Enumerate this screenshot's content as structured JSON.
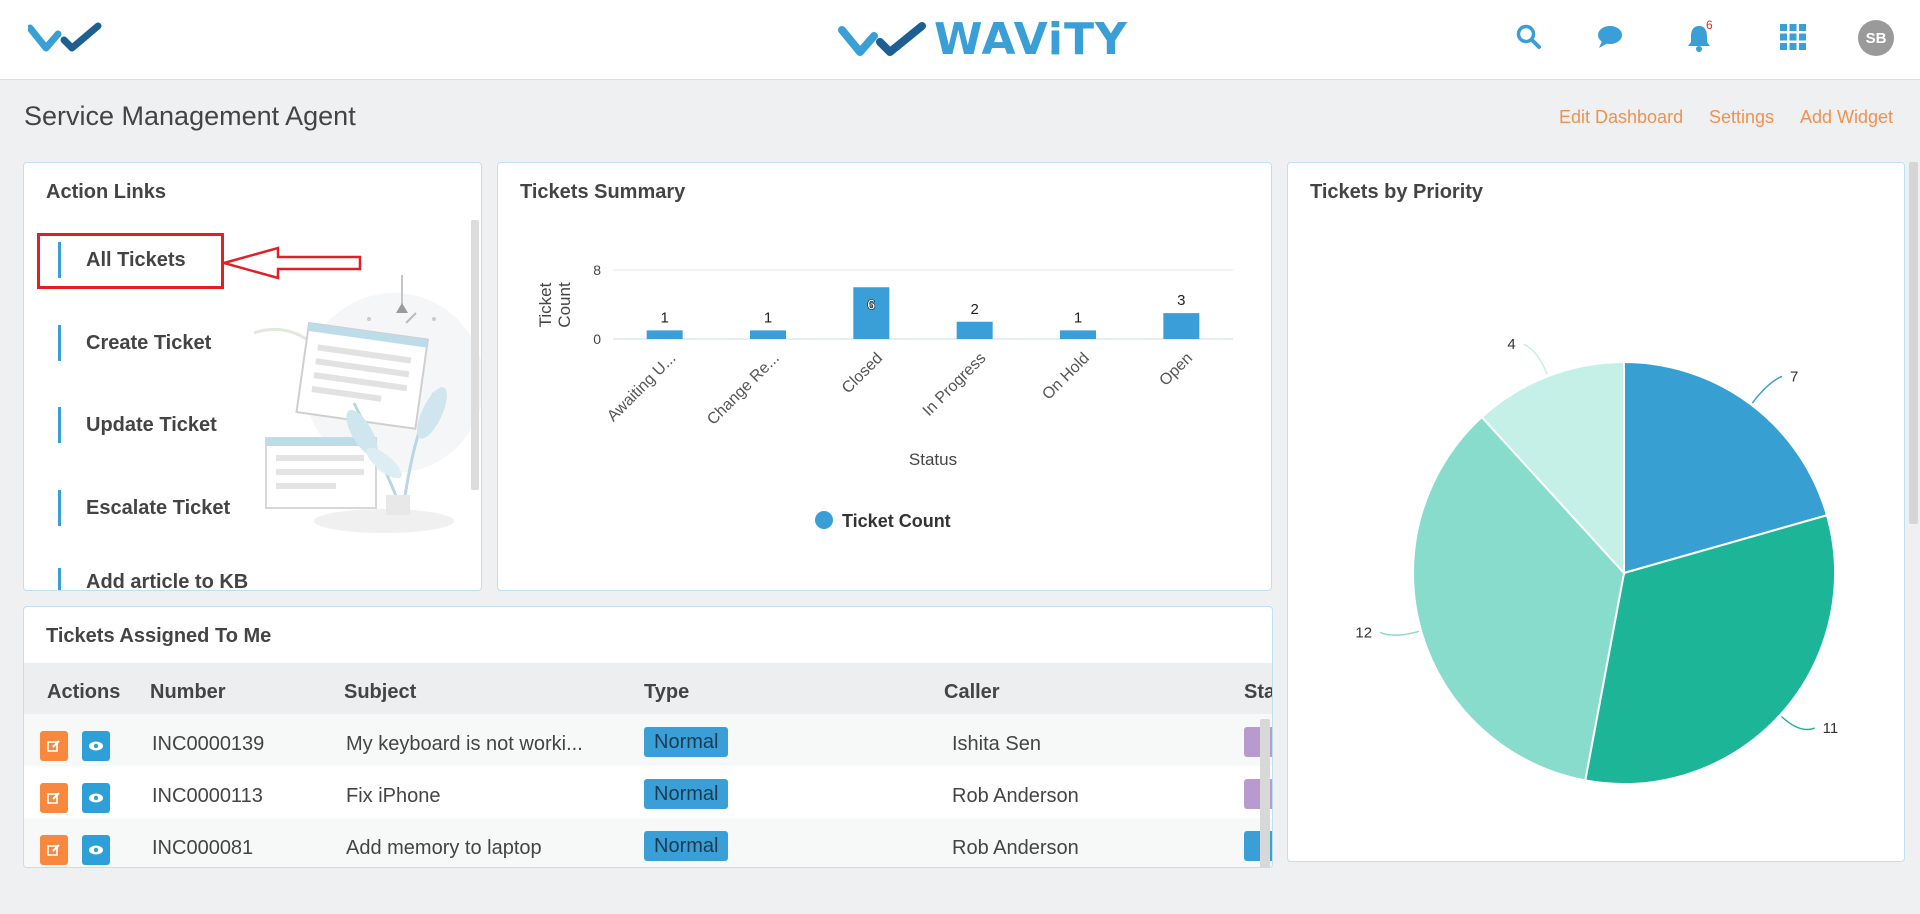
{
  "header": {
    "brand": "WAViTY",
    "notifications_count": "6",
    "avatar_initials": "SB",
    "icons": [
      "search-icon",
      "chat-icon",
      "bell-icon",
      "apps-grid-icon"
    ]
  },
  "page": {
    "title": "Service Management Agent",
    "links": [
      "Edit Dashboard",
      "Settings",
      "Add Widget"
    ]
  },
  "action_links": {
    "title": "Action Links",
    "items": [
      "All Tickets",
      "Create Ticket",
      "Update Ticket",
      "Escalate Ticket",
      "Add article to KB"
    ]
  },
  "tickets_summary": {
    "title": "Tickets Summary",
    "chart_data": {
      "type": "bar",
      "categories": [
        "Awaiting U...",
        "Change Re...",
        "Closed",
        "In Progress",
        "On Hold",
        "Open"
      ],
      "series": [
        {
          "name": "Ticket Count",
          "values": [
            1,
            1,
            6,
            2,
            1,
            3
          ]
        }
      ],
      "xlabel": "Status",
      "ylabel": "Ticket Count",
      "yticks": [
        "8",
        "0"
      ],
      "ylim": [
        0,
        8
      ],
      "legend": "bottom-center",
      "color": "#3a9fd6"
    }
  },
  "tickets_by_priority": {
    "title": "Tickets by Priority",
    "chart_data": {
      "type": "pie",
      "values": [
        7,
        11,
        12,
        4
      ],
      "colors": [
        "#389fd2",
        "#1db597",
        "#88dccb",
        "#c4f0e8"
      ]
    }
  },
  "tickets_assigned": {
    "title": "Tickets Assigned To Me",
    "columns": [
      "Actions",
      "Number",
      "Subject",
      "Type",
      "Caller",
      "Sta"
    ],
    "rows": [
      {
        "number": "INC0000139",
        "subject": "My keyboard is not worki...",
        "type": "Normal",
        "caller": "Ishita Sen",
        "state_color": "#b79bcf"
      },
      {
        "number": "INC0000113",
        "subject": "Fix iPhone",
        "type": "Normal",
        "caller": "Rob Anderson",
        "state_color": "#b79bcf"
      },
      {
        "number": "INC000081",
        "subject": "Add memory to laptop",
        "type": "Normal",
        "caller": "Rob Anderson",
        "state_color": "#3a9fd6"
      }
    ]
  },
  "colors": {
    "accent": "#3a9fd6",
    "link": "#f0914f",
    "highlight": "#e21f26"
  }
}
